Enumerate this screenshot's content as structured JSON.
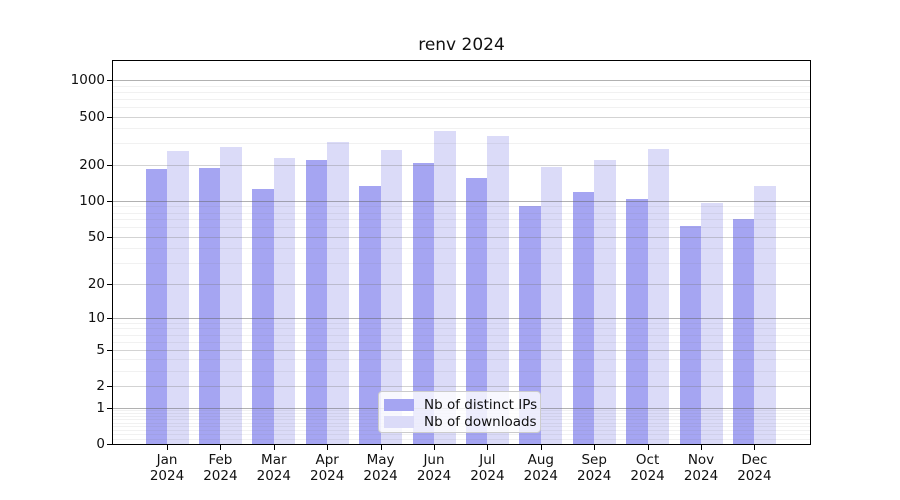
{
  "title": "renv 2024",
  "chart_data": {
    "type": "bar",
    "title": "renv 2024",
    "categories": [
      "Jan 2024",
      "Feb 2024",
      "Mar 2024",
      "Apr 2024",
      "May 2024",
      "Jun 2024",
      "Jul 2024",
      "Aug 2024",
      "Sep 2024",
      "Oct 2024",
      "Nov 2024",
      "Dec 2024"
    ],
    "series": [
      {
        "name": "Nb of distinct IPs",
        "color": "#a5a5f2",
        "values": [
          184,
          186,
          126,
          218,
          134,
          208,
          156,
          90,
          118,
          104,
          62,
          71
        ]
      },
      {
        "name": "Nb of downloads",
        "color": "#dbdbf8",
        "values": [
          258,
          278,
          228,
          310,
          266,
          382,
          348,
          192,
          220,
          272,
          97,
          132
        ]
      }
    ],
    "xlabel": "",
    "ylabel": "",
    "yscale": "log1p",
    "y_ticks": [
      0,
      1,
      2,
      5,
      10,
      20,
      50,
      100,
      200,
      500,
      1000
    ],
    "ylim": [
      0,
      1465
    ],
    "grid": true,
    "legend_position": "lower center"
  }
}
